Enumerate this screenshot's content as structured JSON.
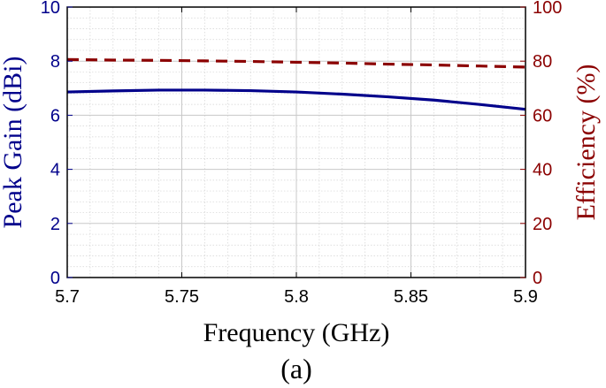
{
  "chart_data": {
    "type": "line",
    "xlabel": "Frequency (GHz)",
    "ylabel_left": "Peak Gain (dBi)",
    "ylabel_right": "Efficiency (%)",
    "caption": "(a)",
    "xlim": [
      5.7,
      5.9
    ],
    "ylim_left": [
      0,
      10
    ],
    "ylim_right": [
      0,
      100
    ],
    "x_ticks": [
      "5.7",
      "5.75",
      "5.8",
      "5.85",
      "5.9"
    ],
    "y_ticks_left": [
      "0",
      "2",
      "4",
      "6",
      "8",
      "10"
    ],
    "y_ticks_right": [
      "0",
      "20",
      "40",
      "60",
      "80",
      "100"
    ],
    "grid": true,
    "minor_grid": true,
    "colors": {
      "gain": "#00008b",
      "efficiency": "#8b0000",
      "grid": "#d3d3d3"
    },
    "series": [
      {
        "axis": "left",
        "style": "solid",
        "x": [
          5.7,
          5.72,
          5.74,
          5.76,
          5.78,
          5.8,
          5.82,
          5.84,
          5.86,
          5.88,
          5.9
        ],
        "values": [
          6.86,
          6.9,
          6.93,
          6.93,
          6.91,
          6.86,
          6.78,
          6.68,
          6.56,
          6.4,
          6.22
        ]
      },
      {
        "axis": "right",
        "style": "dashed",
        "x": [
          5.7,
          5.72,
          5.74,
          5.76,
          5.78,
          5.8,
          5.82,
          5.84,
          5.86,
          5.88,
          5.9
        ],
        "values": [
          80.6,
          80.4,
          80.3,
          80.1,
          79.9,
          79.6,
          79.3,
          78.9,
          78.6,
          78.2,
          77.8
        ]
      }
    ]
  }
}
